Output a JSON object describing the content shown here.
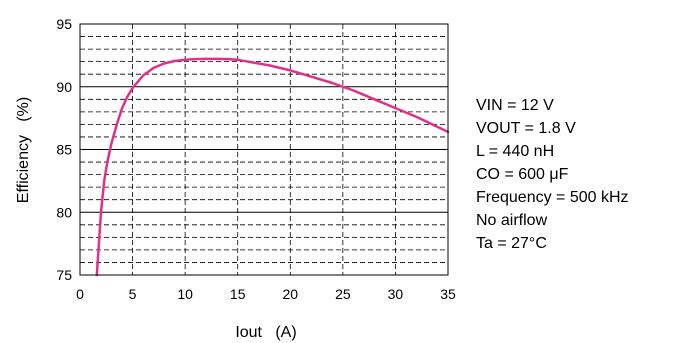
{
  "chart_data": {
    "type": "line",
    "xlabel": "Iout   (A)",
    "ylabel": "Efficiency   (%)",
    "xlim": [
      0,
      35
    ],
    "ylim": [
      75,
      95
    ],
    "x_ticks": [
      0,
      5,
      10,
      15,
      20,
      25,
      30,
      35
    ],
    "y_ticks": [
      75,
      80,
      85,
      90,
      95
    ],
    "grid": true,
    "minor_y_step": 1,
    "line_color": "#e0308a",
    "series": [
      {
        "x": [
          1.6,
          1.8,
          2.0,
          2.3,
          2.6,
          3.0,
          3.5,
          4.0,
          4.5,
          5.0,
          6.0,
          7.0,
          8.0,
          9.0,
          10.0,
          11.0,
          12.0,
          13.0,
          14.0,
          15.0,
          16.0,
          18.0,
          20.0,
          22.0,
          24.0,
          26.0,
          28.0,
          30.0,
          32.0,
          34.0,
          35.0
        ],
        "y": [
          75.0,
          77.5,
          80.0,
          82.5,
          84.0,
          85.5,
          87.0,
          88.3,
          89.2,
          89.9,
          90.9,
          91.5,
          91.85,
          92.05,
          92.15,
          92.2,
          92.22,
          92.22,
          92.2,
          92.15,
          92.0,
          91.7,
          91.3,
          90.8,
          90.3,
          89.7,
          89.0,
          88.3,
          87.6,
          86.8,
          86.4
        ]
      }
    ],
    "annotations": [
      "VIN = 12 V",
      "VOUT = 1.8 V",
      "L = 440 nH",
      "CO = 600 μF",
      "Frequency = 500 kHz",
      "No airflow",
      "Ta = 27°C"
    ]
  }
}
